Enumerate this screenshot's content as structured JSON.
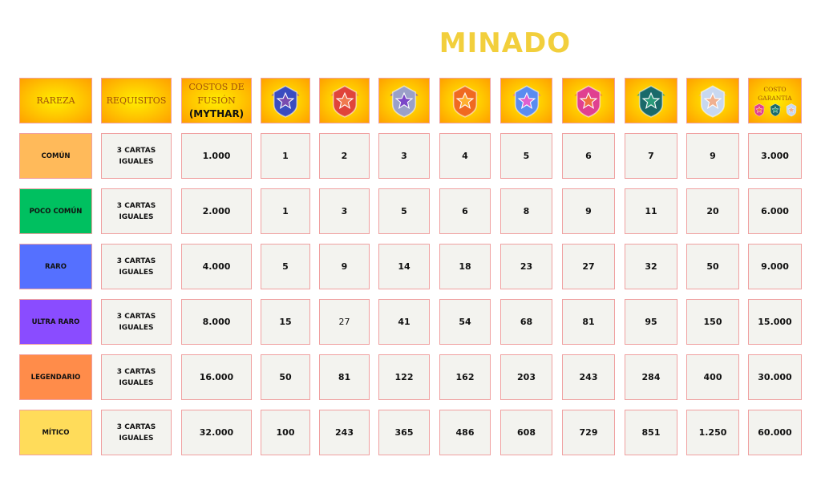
{
  "title": "MINADO",
  "header": {
    "rareza": "RAREZA",
    "requisitos": "REQUISITOS",
    "costos_line1": "COSTOS DE",
    "costos_line2": "FUSIÓN",
    "costos_line3": "(MYTHAR)",
    "garantia_line1": "COSTO",
    "garantia_line2": "GARANTIA"
  },
  "badges": [
    {
      "icon": "blue-shield-badge-icon",
      "color": "#3a4cc0",
      "accent": "#7a4bb0"
    },
    {
      "icon": "red-star-badge-icon",
      "color": "#e0443a",
      "accent": "#f07a50"
    },
    {
      "icon": "silver-winged-badge-icon",
      "color": "#9aa0c8",
      "accent": "#7b48c8"
    },
    {
      "icon": "orange-winged-badge-icon",
      "color": "#f06a20",
      "accent": "#ffb030"
    },
    {
      "icon": "prismatic-star-badge-icon",
      "color": "#5a8cf0",
      "accent": "#e060d0"
    },
    {
      "icon": "pink-star-badge-icon",
      "color": "#e04090",
      "accent": "#f07040"
    },
    {
      "icon": "green-laurel-badge-icon",
      "color": "#1a6a6a",
      "accent": "#2a9a7a"
    },
    {
      "icon": "diamond-winged-badge-icon",
      "color": "#c8d8f0",
      "accent": "#f0b090"
    }
  ],
  "rows": [
    {
      "rareza": "COMÚN",
      "color": "#ffba5a",
      "req1": "3 CARTAS",
      "req2": "IGUALES",
      "costo": "1.000",
      "values": [
        "1",
        "2",
        "3",
        "4",
        "5",
        "6",
        "7",
        "9"
      ],
      "garantia": "3.000"
    },
    {
      "rareza": "POCO COMÚN",
      "color": "#00c060",
      "req1": "3 CARTAS",
      "req2": "IGUALES",
      "costo": "2.000",
      "values": [
        "1",
        "3",
        "5",
        "6",
        "8",
        "9",
        "11",
        "20"
      ],
      "garantia": "6.000"
    },
    {
      "rareza": "RARO",
      "color": "#5570ff",
      "req1": "3 CARTAS",
      "req2": "IGUALES",
      "costo": "4.000",
      "values": [
        "5",
        "9",
        "14",
        "18",
        "23",
        "27",
        "32",
        "50"
      ],
      "garantia": "9.000"
    },
    {
      "rareza": "ULTRA RARO",
      "color": "#8a4cff",
      "req1": "3 CARTAS",
      "req2": "IGUALES",
      "costo": "8.000",
      "values": [
        "15",
        "27",
        "41",
        "54",
        "68",
        "81",
        "95",
        "150"
      ],
      "garantia": "15.000"
    },
    {
      "rareza": "LEGENDARIO",
      "color": "#ff8c4a",
      "req1": "3 CARTAS",
      "req2": "IGUALES",
      "costo": "16.000",
      "values": [
        "50",
        "81",
        "122",
        "162",
        "203",
        "243",
        "284",
        "400"
      ],
      "garantia": "30.000"
    },
    {
      "rareza": "MÍTICO",
      "color": "#ffdc5a",
      "req1": "3 CARTAS",
      "req2": "IGUALES",
      "costo": "32.000",
      "values": [
        "100",
        "243",
        "365",
        "486",
        "608",
        "729",
        "851",
        "1.250"
      ],
      "garantia": "60.000"
    }
  ]
}
